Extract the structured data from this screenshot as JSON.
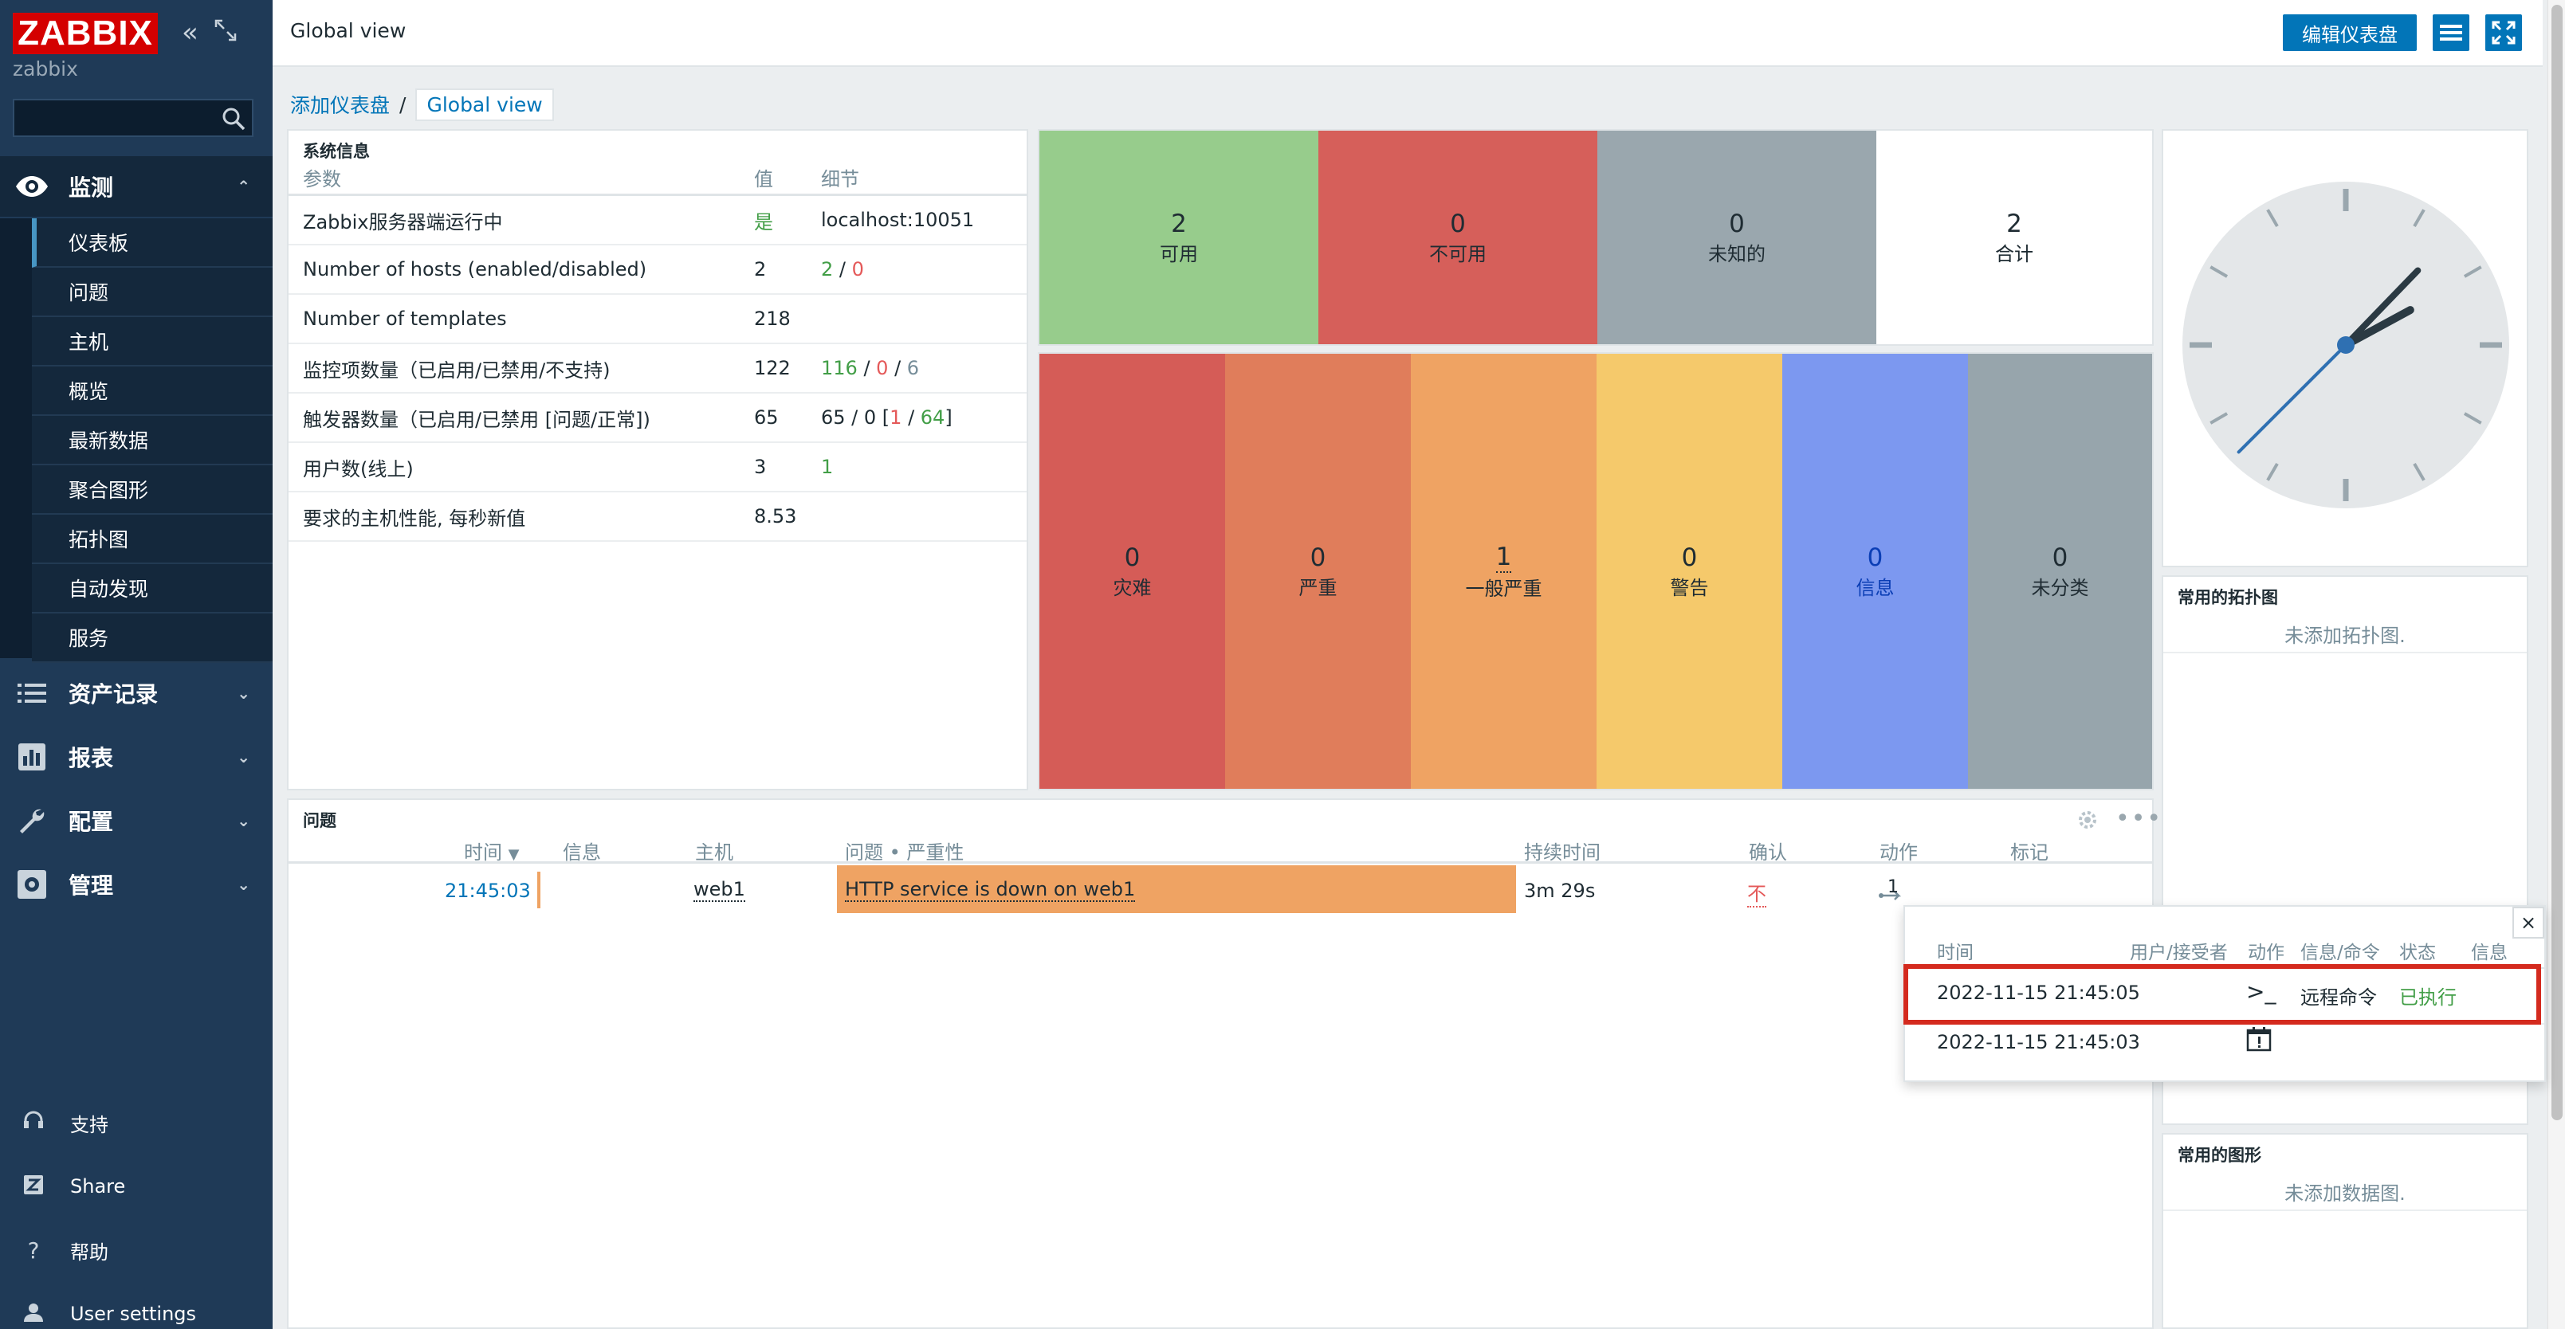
{
  "sidebar": {
    "logo": "ZABBIX",
    "subtitle": "zabbix",
    "search": {
      "value": "",
      "placeholder": ""
    },
    "monitoring": {
      "label": "监测",
      "items": [
        "仪表板",
        "问题",
        "主机",
        "概览",
        "最新数据",
        "聚合图形",
        "拓扑图",
        "自动发现",
        "服务"
      ]
    },
    "sections": [
      {
        "label": "资产记录",
        "icon": "list-icon"
      },
      {
        "label": "报表",
        "icon": "bar-chart-icon"
      },
      {
        "label": "配置",
        "icon": "wrench-icon"
      },
      {
        "label": "管理",
        "icon": "gear-icon"
      }
    ],
    "bottom": [
      {
        "label": "支持",
        "icon": "headset-icon"
      },
      {
        "label": "Share",
        "icon": "share-icon"
      },
      {
        "label": "帮助",
        "icon": "help-icon"
      },
      {
        "label": "User settings",
        "icon": "user-icon"
      }
    ]
  },
  "header": {
    "title": "Global view",
    "edit_button": "编辑仪表盘"
  },
  "breadcrumb": {
    "parent": "添加仪表盘",
    "separator": "/",
    "current": "Global view"
  },
  "system_info": {
    "title": "系统信息",
    "columns": [
      "参数",
      "值",
      "细节"
    ],
    "rows": [
      {
        "param": "Zabbix服务器端运行中",
        "value": "是",
        "detail": "localhost:10051"
      },
      {
        "param": "Number of hosts (enabled/disabled)",
        "value": "2",
        "detail_a": "2",
        "detail_sep": " / ",
        "detail_b": "0"
      },
      {
        "param": "Number of templates",
        "value": "218",
        "detail": ""
      },
      {
        "param": "监控项数量（已启用/已禁用/不支持)",
        "value": "122",
        "detail_a": "116",
        "detail_sep1": " / ",
        "detail_b": "0",
        "detail_sep2": " / ",
        "detail_c": "6"
      },
      {
        "param": "触发器数量（已启用/已禁用 [问题/正常])",
        "value": "65",
        "detail_pre": "65 / 0 [",
        "detail_a": "1",
        "detail_sep": " / ",
        "detail_b": "64",
        "detail_post": "]"
      },
      {
        "param": "用户数(线上)",
        "value": "3",
        "detail": "1"
      },
      {
        "param": "要求的主机性能, 每秒新值",
        "value": "8.53",
        "detail": ""
      }
    ]
  },
  "host_availability": [
    {
      "count": "2",
      "label": "可用",
      "color": "#97cc8c"
    },
    {
      "count": "0",
      "label": "不可用",
      "color": "#d65f5a"
    },
    {
      "count": "0",
      "label": "未知的",
      "color": "#9aa7ae"
    },
    {
      "count": "2",
      "label": "合计",
      "color": "#ffffff"
    }
  ],
  "problems_by_severity": [
    {
      "count": "0",
      "label": "灾难",
      "color": "#d55c57"
    },
    {
      "count": "0",
      "label": "严重",
      "color": "#e07d5b"
    },
    {
      "count": "1",
      "label": "一般严重",
      "color": "#efa363"
    },
    {
      "count": "0",
      "label": "警告",
      "color": "#f5c96b"
    },
    {
      "count": "0",
      "label": "信息",
      "color": "#7c98f0"
    },
    {
      "count": "0",
      "label": "未分类",
      "color": "#97a5ac"
    }
  ],
  "clock": {
    "hours": 1,
    "minutes": 7,
    "seconds": 38
  },
  "fav_maps": {
    "title": "常用的拓扑图",
    "empty": "未添加拓扑图."
  },
  "fav_graphs": {
    "title": "常用的图形",
    "empty": "未添加数据图."
  },
  "problems": {
    "title": "问题",
    "columns": {
      "time": "时间",
      "sort": "▼",
      "info": "信息",
      "host": "主机",
      "problem": "问题 • 严重性",
      "duration": "持续时间",
      "ack": "确认",
      "actions": "动作",
      "tags": "标记"
    },
    "rows": [
      {
        "time": "21:45:03",
        "host": "web1",
        "problem": "HTTP service is down on web1",
        "duration": "3m 29s",
        "ack": "不",
        "actions": "1"
      }
    ]
  },
  "actions_popup": {
    "columns": [
      "时间",
      "用户/接受者",
      "动作",
      "信息/命令",
      "状态",
      "信息"
    ],
    "rows": [
      {
        "time": "2022-11-15 21:45:05",
        "action_icon": "terminal-icon",
        "command": "远程命令",
        "status": "已执行"
      },
      {
        "time": "2022-11-15 21:45:03",
        "action_icon": "calendar-alert-icon",
        "command": "",
        "status": ""
      }
    ],
    "close": "×"
  }
}
